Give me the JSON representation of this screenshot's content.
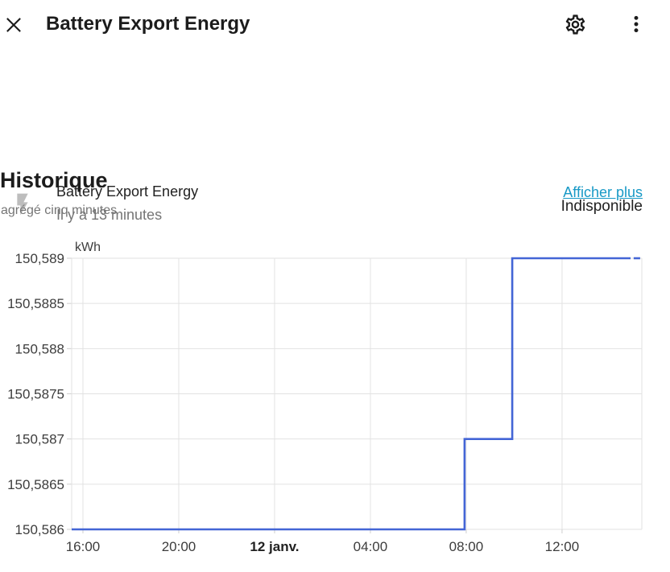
{
  "header": {
    "title": "Battery Export Energy"
  },
  "entity": {
    "name": "Battery Export Energy",
    "last_changed": "Il y a 13 minutes",
    "state": "Indisponible"
  },
  "history": {
    "title": "Historique",
    "subtitle": "agrégé cinq minutes",
    "show_more": "Afficher plus"
  },
  "icons": {
    "close": "✕",
    "settings": "gear",
    "menu": "kebab-vertical-dots",
    "entity": "flash-lightning-bolt"
  },
  "colors": {
    "accent_link": "#1899c6",
    "line": "#4365d6",
    "grid": "#e2e2e2",
    "tick": "#cfcfcf",
    "axis_text": "#3d3d3d",
    "axis_text_bold": "#212121",
    "text_primary": "#1c1c1c",
    "text_secondary": "#757575",
    "icon_muted": "#bdbdbd"
  },
  "chart_data": {
    "type": "line",
    "subtype": "step",
    "title": "Historique",
    "unit": "kWh",
    "ylim": [
      150.586,
      150.589
    ],
    "xlim": [
      -8.47,
      15.33
    ],
    "grid": true,
    "yticks": [
      {
        "v": 150.589,
        "label": "150,589"
      },
      {
        "v": 150.5885,
        "label": "150,5885"
      },
      {
        "v": 150.588,
        "label": "150,588"
      },
      {
        "v": 150.5875,
        "label": "150,5875"
      },
      {
        "v": 150.587,
        "label": "150,587"
      },
      {
        "v": 150.5865,
        "label": "150,5865"
      },
      {
        "v": 150.586,
        "label": "150,586"
      }
    ],
    "xticks": [
      {
        "v": -8,
        "label": "16:00",
        "bold": false
      },
      {
        "v": -4,
        "label": "20:00",
        "bold": false
      },
      {
        "v": 0,
        "label": "12 janv.",
        "bold": true
      },
      {
        "v": 4,
        "label": "04:00",
        "bold": false
      },
      {
        "v": 8,
        "label": "08:00",
        "bold": false
      },
      {
        "v": 12,
        "label": "12:00",
        "bold": false
      }
    ],
    "series": [
      {
        "name": "Battery Export Energy",
        "color": "#4365d6",
        "points": [
          [
            -8.47,
            150.586
          ],
          [
            7.93,
            150.586
          ],
          [
            7.93,
            150.587
          ],
          [
            9.92,
            150.587
          ],
          [
            9.92,
            150.589
          ],
          [
            14.86,
            150.589
          ]
        ],
        "trailing_dash": [
          [
            14.99,
            150.589
          ],
          [
            15.26,
            150.589
          ]
        ]
      }
    ]
  }
}
